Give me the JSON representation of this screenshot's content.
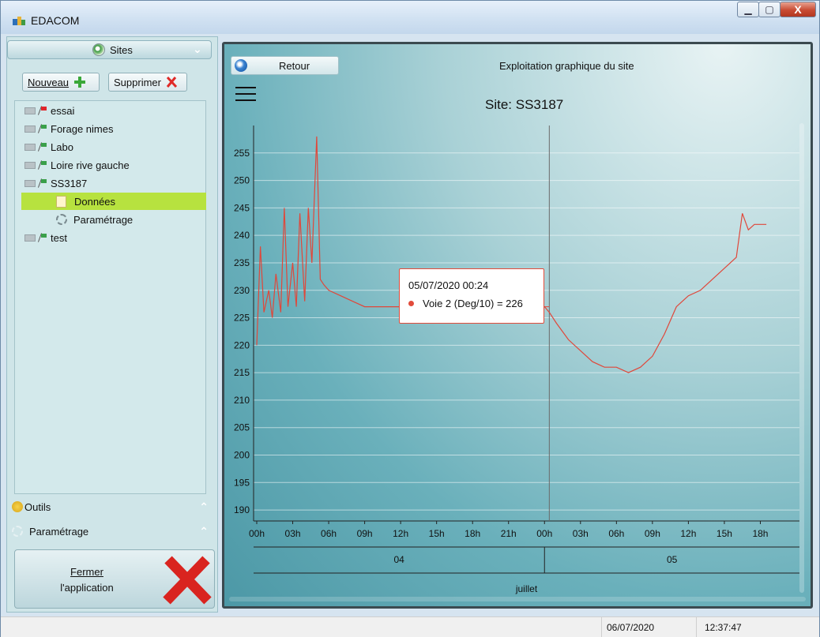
{
  "window": {
    "title": "EDACOM",
    "minimize": "▁",
    "maximize": "▢",
    "close": "X"
  },
  "left": {
    "accordion_title": "Sites",
    "new_button": "Nouveau",
    "delete_button": "Supprimer",
    "tree": [
      {
        "label": "essai",
        "flag": "red"
      },
      {
        "label": "Forage nimes",
        "flag": "green"
      },
      {
        "label": "Labo",
        "flag": "green"
      },
      {
        "label": "Loire rive gauche",
        "flag": "green"
      },
      {
        "label": "SS3187",
        "flag": "green"
      }
    ],
    "children": [
      "Données",
      "Paramétrage"
    ],
    "tree_last": "test",
    "outils": "Outils",
    "parametrage": "Paramétrage",
    "close_app_line1": "Fermer",
    "close_app_line2": "l'application"
  },
  "right": {
    "retour": "Retour",
    "page_title": "Exploitation graphique du site",
    "chart_title": "Site: SS3187",
    "tooltip_time": "05/07/2020 00:24",
    "tooltip_value": "Voie 2 (Deg/10) = 226"
  },
  "status": {
    "date": "06/07/2020",
    "time": "12:37:47"
  },
  "colors": {
    "series": "#e0473a",
    "selected_row": "#b7e23f"
  },
  "chart_data": {
    "type": "line",
    "title": "Site: SS3187",
    "ylim": [
      188,
      260
    ],
    "yticks": [
      190,
      195,
      200,
      205,
      210,
      215,
      220,
      225,
      230,
      235,
      240,
      245,
      250,
      255
    ],
    "x_tick_labels": [
      "00h",
      "03h",
      "06h",
      "09h",
      "12h",
      "15h",
      "18h",
      "21h",
      "00h",
      "03h",
      "06h",
      "09h",
      "12h",
      "15h",
      "18h"
    ],
    "day_labels": [
      "04",
      "05"
    ],
    "month_label": "juillet",
    "series": [
      {
        "name": "Voie 2 (Deg/10)",
        "x_hours": [
          0,
          0.3,
          0.6,
          1,
          1.3,
          1.6,
          2,
          2.3,
          2.6,
          3,
          3.3,
          3.6,
          4,
          4.3,
          4.6,
          5,
          5.3,
          5.6,
          6,
          7,
          8,
          9,
          10,
          12,
          15,
          18,
          21,
          24,
          24.4,
          25,
          26,
          27,
          28,
          29,
          30,
          31,
          32,
          32.5,
          33,
          34,
          35,
          36,
          37,
          38,
          39,
          40,
          40.5,
          41,
          41.5,
          42,
          42.5
        ],
        "values": [
          220,
          238,
          226,
          230,
          225,
          233,
          226,
          245,
          227,
          235,
          227,
          244,
          228,
          245,
          235,
          258,
          232,
          231,
          230,
          229,
          228,
          227,
          227,
          227,
          227,
          227,
          227,
          227,
          226,
          224,
          221,
          219,
          217,
          216,
          216,
          215,
          216,
          217,
          218,
          222,
          227,
          229,
          230,
          232,
          234,
          236,
          244,
          241,
          242,
          242,
          242
        ]
      }
    ]
  }
}
